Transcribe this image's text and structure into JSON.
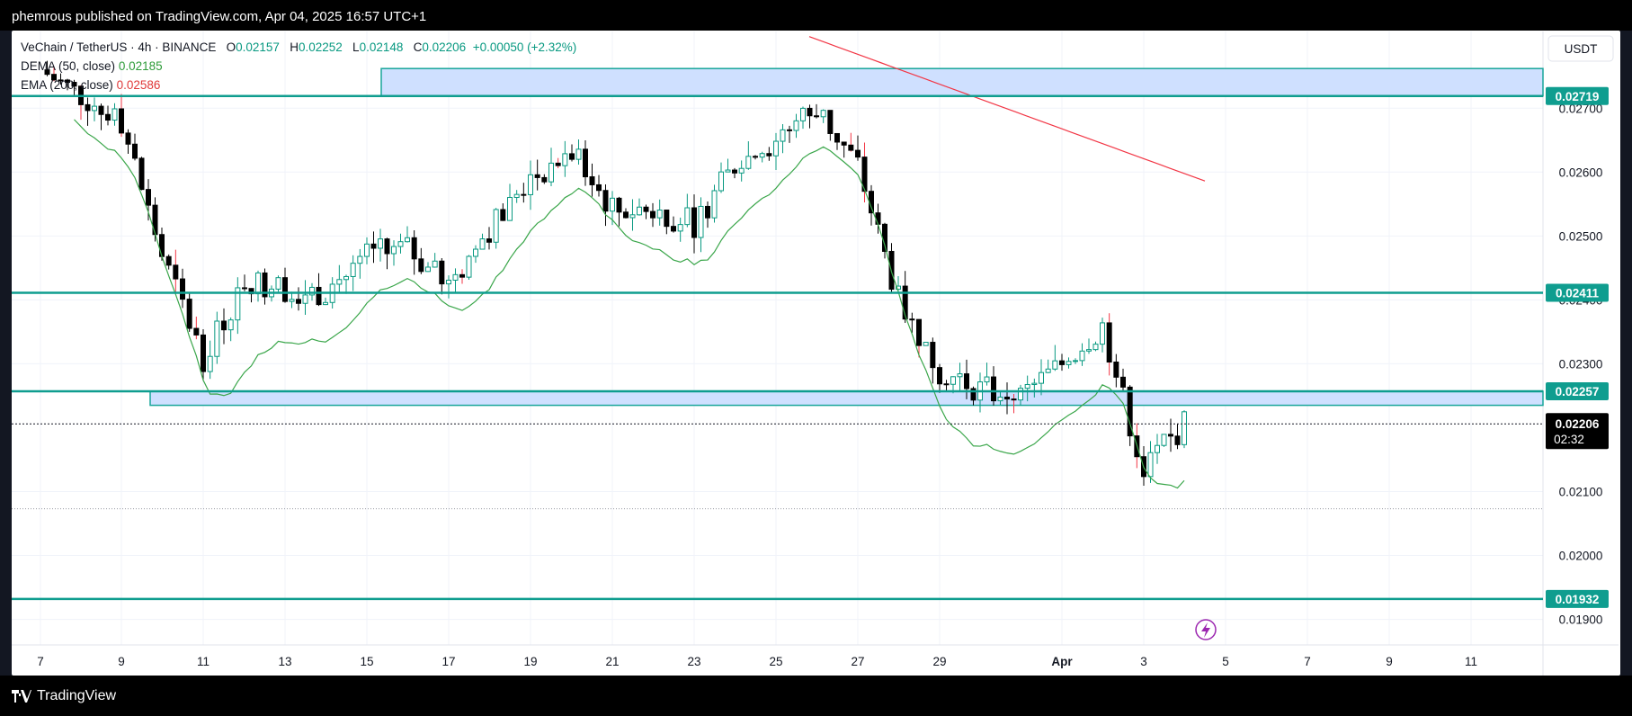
{
  "header": {
    "publish_text": "phemrous published on TradingView.com, Apr 04, 2025 16:57 UTC+1"
  },
  "footer": {
    "brand": "TradingView"
  },
  "legend": {
    "symbol": "VeChain / TetherUS · 4h · BINANCE",
    "o_label": "O",
    "o_value": "0.02157",
    "h_label": "H",
    "h_value": "0.02252",
    "l_label": "L",
    "l_value": "0.02148",
    "c_label": "C",
    "c_value": "0.02206",
    "change": "+0.00050 (+2.32%)",
    "dema_label": "DEMA (50, close)",
    "dema_value": "0.02185",
    "ema_label": "EMA (200, close)",
    "ema_value": "0.02586"
  },
  "price_axis": {
    "currency": "USDT",
    "ticks": [
      "0.02700",
      "0.02600",
      "0.02500",
      "0.02400",
      "0.02300",
      "0.02100",
      "0.02000",
      "0.01900"
    ],
    "level_labels": [
      "0.02719",
      "0.02411",
      "0.02257",
      "0.01932"
    ],
    "last_price": "0.02206",
    "countdown": "02:32"
  },
  "time_axis": {
    "ticks": [
      "7",
      "9",
      "11",
      "13",
      "15",
      "17",
      "19",
      "21",
      "23",
      "25",
      "27",
      "29",
      "Apr",
      "3",
      "5",
      "7",
      "9",
      "11"
    ]
  },
  "colors": {
    "background": "#ffffff",
    "frame": "#131722",
    "up": "#089981",
    "down": "#000000",
    "dema": "#3aa64a",
    "ema": "#f23645",
    "level_line": "#0f9d8f",
    "zone_fill": "#cfe0ff",
    "zone_border": "#18a59a",
    "wick_down": "#f23645"
  },
  "chart_data": {
    "type": "candlestick",
    "title": "VeChain / TetherUS · 4h · BINANCE",
    "x_axis_ticks": [
      "7",
      "9",
      "11",
      "13",
      "15",
      "17",
      "19",
      "21",
      "23",
      "25",
      "27",
      "29",
      "Apr",
      "3",
      "5",
      "7",
      "9",
      "11"
    ],
    "ylim": [
      0.0186,
      0.0282
    ],
    "horizontal_levels": [
      0.02719,
      0.02411,
      0.02257,
      0.01932
    ],
    "zones": [
      {
        "from": 0.02719,
        "to": 0.02762,
        "label": "resistance zone"
      },
      {
        "from": 0.02235,
        "to": 0.02257,
        "label": "support zone"
      }
    ],
    "last_price": 0.02206,
    "period_low_marker": 0.02073,
    "ohlc_last": {
      "open": 0.02157,
      "high": 0.02252,
      "low": 0.02148,
      "close": 0.02206
    },
    "series": [
      {
        "name": "DEMA (50, close)",
        "last_value": 0.02185
      },
      {
        "name": "EMA (200, close)",
        "last_value": 0.02586
      }
    ],
    "closes_by_day": [
      {
        "day": "7",
        "close": 0.0276
      },
      {
        "day": "9",
        "close": 0.0268
      },
      {
        "day": "10",
        "close": 0.0247
      },
      {
        "day": "11",
        "close": 0.0231
      },
      {
        "day": "12",
        "close": 0.0243
      },
      {
        "day": "13",
        "close": 0.0242
      },
      {
        "day": "14",
        "close": 0.0241
      },
      {
        "day": "15",
        "close": 0.0247
      },
      {
        "day": "16",
        "close": 0.0248
      },
      {
        "day": "17",
        "close": 0.0242
      },
      {
        "day": "18",
        "close": 0.0251
      },
      {
        "day": "19",
        "close": 0.0259
      },
      {
        "day": "20",
        "close": 0.0263
      },
      {
        "day": "21",
        "close": 0.0254
      },
      {
        "day": "22",
        "close": 0.0254
      },
      {
        "day": "23",
        "close": 0.0252
      },
      {
        "day": "24",
        "close": 0.0261
      },
      {
        "day": "25",
        "close": 0.0265
      },
      {
        "day": "26",
        "close": 0.027
      },
      {
        "day": "27",
        "close": 0.0261
      },
      {
        "day": "28",
        "close": 0.024
      },
      {
        "day": "29",
        "close": 0.0229
      },
      {
        "day": "30",
        "close": 0.0226
      },
      {
        "day": "31",
        "close": 0.0225
      },
      {
        "day": "Apr 1",
        "close": 0.023
      },
      {
        "day": "Apr 2",
        "close": 0.0236
      },
      {
        "day": "Apr 3",
        "close": 0.0213
      },
      {
        "day": "Apr 4",
        "close": 0.02206
      }
    ]
  }
}
